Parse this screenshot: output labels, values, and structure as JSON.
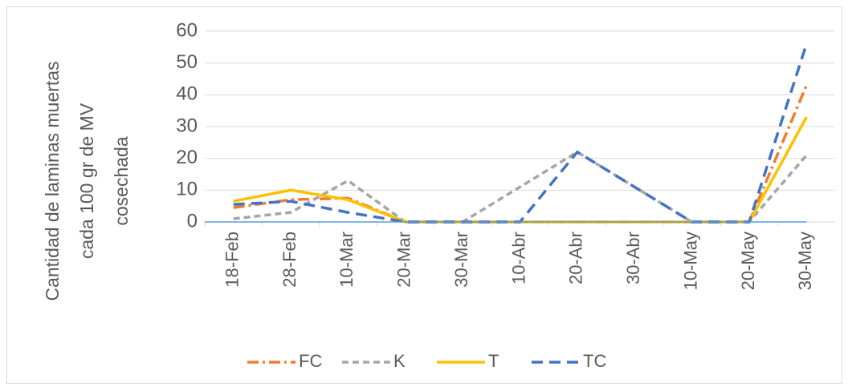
{
  "chart_data": {
    "type": "line",
    "ylabel": [
      "Cantidad de laminas muertas",
      "cada 100 gr de MV",
      "cosechada"
    ],
    "categories": [
      "18-Feb",
      "28-Feb",
      "10-Mar",
      "20-Mar",
      "30-Mar",
      "10-Abr",
      "20-Abr",
      "30-Abr",
      "10-May",
      "20-May",
      "30-May"
    ],
    "series": [
      {
        "name": "FC",
        "color": "#ed7d31",
        "dash": "14,5,3,5",
        "values": [
          4.5,
          7,
          7.5,
          0,
          0,
          0,
          0,
          0,
          0,
          0,
          43
        ]
      },
      {
        "name": "K",
        "color": "#a5a5a5",
        "dash": "8,5",
        "values": [
          1,
          3,
          13,
          0,
          0,
          11,
          22,
          11,
          0,
          0,
          21
        ]
      },
      {
        "name": "T",
        "color": "#ffc000",
        "dash": "none",
        "values": [
          6.5,
          10,
          7,
          0,
          0,
          0,
          0,
          0,
          0,
          0,
          33
        ]
      },
      {
        "name": "TC",
        "color": "#4472c4",
        "dash": "14,8",
        "values": [
          5.5,
          6.5,
          3,
          0,
          0,
          0,
          22,
          11,
          0,
          0,
          56
        ]
      }
    ],
    "ylim": [
      0,
      60
    ],
    "yticks": [
      0,
      10,
      20,
      30,
      40,
      50,
      60
    ],
    "grid": true
  }
}
